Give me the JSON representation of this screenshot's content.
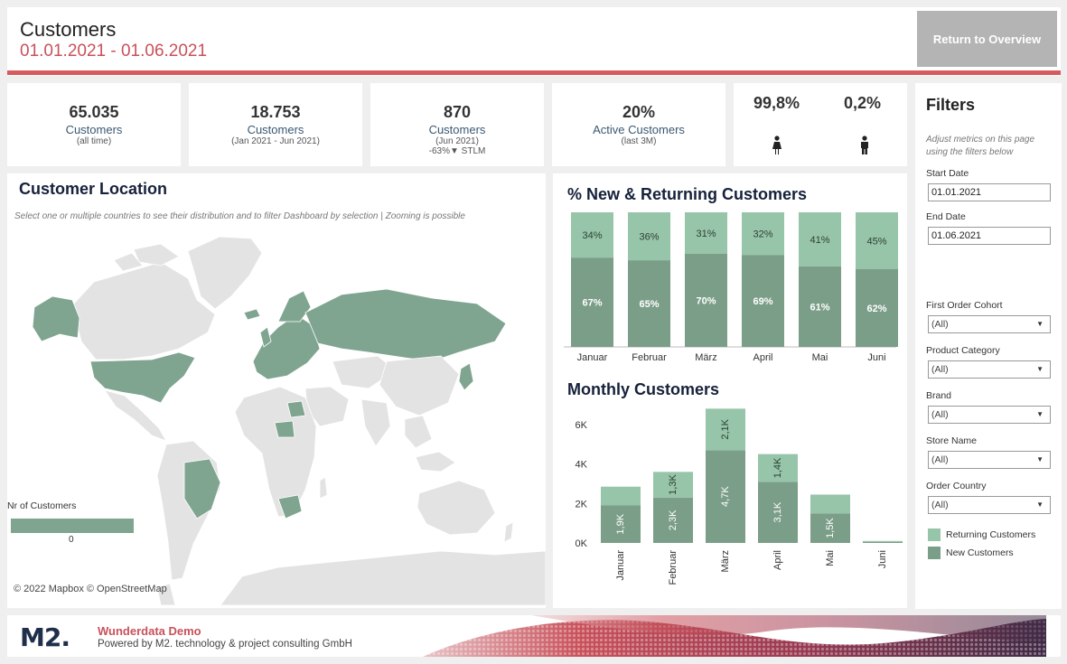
{
  "header": {
    "title": "Customers",
    "date_range": "01.01.2021 - 01.06.2021",
    "return_button": "Return to Overview"
  },
  "kpis": [
    {
      "value": "65.035",
      "label": "Customers",
      "sub": "(all time)",
      "extra": ""
    },
    {
      "value": "18.753",
      "label": "Customers",
      "sub": "(Jan 2021 - Jun 2021)",
      "extra": ""
    },
    {
      "value": "870",
      "label": "Customers",
      "sub": "(Jun 2021)",
      "extra": "-63%▼ STLM"
    },
    {
      "value": "20%",
      "label": "Active Customers",
      "sub": "(last 3M)",
      "extra": ""
    }
  ],
  "gender": {
    "female_share": "99,8%",
    "male_share": "0,2%",
    "female_icon": "female-person-icon",
    "male_icon": "male-person-icon"
  },
  "map": {
    "title": "Customer Location",
    "note": "Select one or multiple countries to see their distribution and to filter Dashboard by selection | Zooming is possible",
    "legend_title": "Nr of Customers",
    "legend_value": "0",
    "attribution": "© 2022 Mapbox  © OpenStreetMap",
    "highlight_color": "#7fa591",
    "base_color": "#e3e3e3"
  },
  "returning_chart": {
    "title": "% New & Returning Customers"
  },
  "monthly_chart": {
    "title": "Monthly Customers"
  },
  "chart_data": [
    {
      "type": "bar",
      "stacked": true,
      "normalized": true,
      "title": "% New & Returning Customers",
      "categories": [
        "Januar",
        "Februar",
        "März",
        "April",
        "Mai",
        "Juni"
      ],
      "series": [
        {
          "name": "New Customers",
          "values": [
            67,
            65,
            70,
            69,
            61,
            62
          ],
          "labels": [
            "67%",
            "65%",
            "70%",
            "69%",
            "61%",
            "62%"
          ],
          "color": "#7b9e88"
        },
        {
          "name": "Returning Customers",
          "values": [
            34,
            36,
            31,
            32,
            41,
            45
          ],
          "labels": [
            "34%",
            "36%",
            "31%",
            "32%",
            "41%",
            "45%"
          ],
          "color": "#97c5a9"
        }
      ],
      "ylim": [
        0,
        100
      ],
      "grid": false
    },
    {
      "type": "bar",
      "stacked": true,
      "title": "Monthly Customers",
      "categories": [
        "Januar",
        "Februar",
        "März",
        "April",
        "Mai",
        "Juni"
      ],
      "yticks": [
        "0K",
        "2K",
        "4K",
        "6K"
      ],
      "ylim": [
        0,
        7000
      ],
      "series": [
        {
          "name": "New Customers",
          "values": [
            1900,
            2300,
            4700,
            3100,
            1500,
            60
          ],
          "labels": [
            "1,9K",
            "2,3K",
            "4,7K",
            "3,1K",
            "1,5K",
            ""
          ],
          "color": "#7b9e88"
        },
        {
          "name": "Returning Customers",
          "values": [
            950,
            1300,
            2100,
            1400,
            950,
            40
          ],
          "labels": [
            "",
            "1,3K",
            "2,1K",
            "1,4K",
            "",
            ""
          ],
          "color": "#97c5a9"
        }
      ],
      "grid": false
    }
  ],
  "filters": {
    "title": "Filters",
    "hint": "Adjust metrics on this page using the filters below",
    "start_label": "Start Date",
    "start_value": "01.01.2021",
    "end_label": "End Date",
    "end_value": "01.06.2021",
    "dropdowns": [
      {
        "label": "First Order Cohort",
        "value": "(All)"
      },
      {
        "label": "Product Category",
        "value": "(All)"
      },
      {
        "label": "Brand",
        "value": "(All)"
      },
      {
        "label": "Store Name",
        "value": "(All)"
      },
      {
        "label": "Order Country",
        "value": "(All)"
      }
    ],
    "legend": [
      {
        "label": "Returning Customers",
        "color": "#97c5a9"
      },
      {
        "label": "New Customers",
        "color": "#7b9e88"
      }
    ]
  },
  "footer": {
    "logo": "M2.",
    "brand": "Wunderdata Demo",
    "powered": "Powered by M2. technology & project consulting GmbH"
  }
}
